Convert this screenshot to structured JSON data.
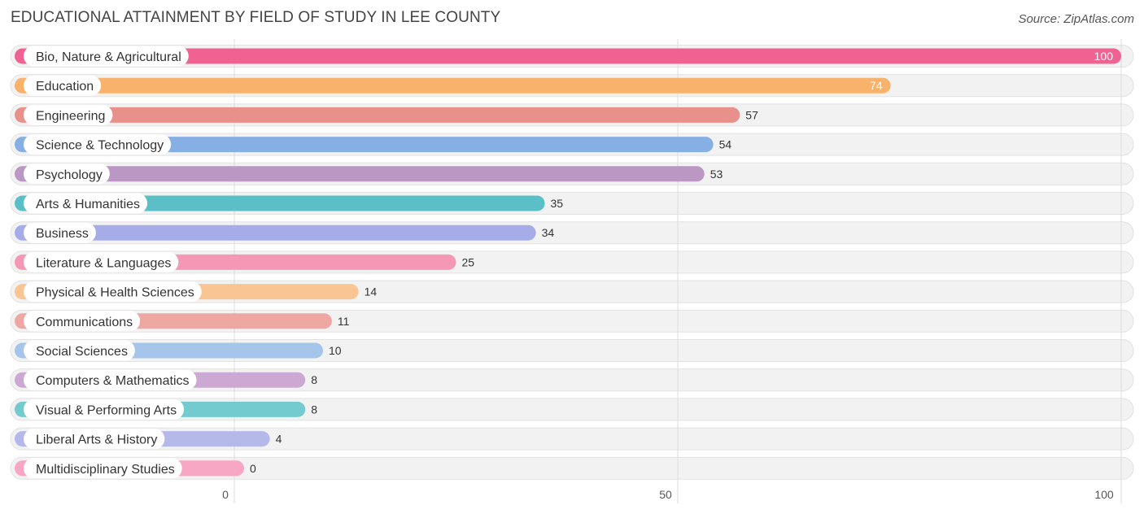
{
  "header": {
    "title": "EDUCATIONAL ATTAINMENT BY FIELD OF STUDY IN LEE COUNTY",
    "source": "Source: ZipAtlas.com"
  },
  "chart_data": {
    "type": "bar",
    "orientation": "horizontal",
    "title": "EDUCATIONAL ATTAINMENT BY FIELD OF STUDY IN LEE COUNTY",
    "xlabel": "",
    "ylabel": "",
    "xlim": [
      0,
      100
    ],
    "x_ticks": [
      0,
      50,
      100
    ],
    "grid": true,
    "categories": [
      "Bio, Nature & Agricultural",
      "Education",
      "Engineering",
      "Science & Technology",
      "Psychology",
      "Arts & Humanities",
      "Business",
      "Literature & Languages",
      "Physical & Health Sciences",
      "Communications",
      "Social Sciences",
      "Computers & Mathematics",
      "Visual & Performing Arts",
      "Liberal Arts & History",
      "Multidisciplinary Studies"
    ],
    "values": [
      100,
      74,
      57,
      54,
      53,
      35,
      34,
      25,
      14,
      11,
      10,
      8,
      8,
      4,
      0
    ],
    "colors": [
      "#f06292",
      "#f9b26b",
      "#e8908a",
      "#86b0e3",
      "#bb97c4",
      "#5bbfc7",
      "#a5ace8",
      "#f598b6",
      "#f9c592",
      "#eea7a3",
      "#a5c5ea",
      "#cba9d2",
      "#73cacf",
      "#b5b9ea",
      "#f7a6c3"
    ]
  }
}
